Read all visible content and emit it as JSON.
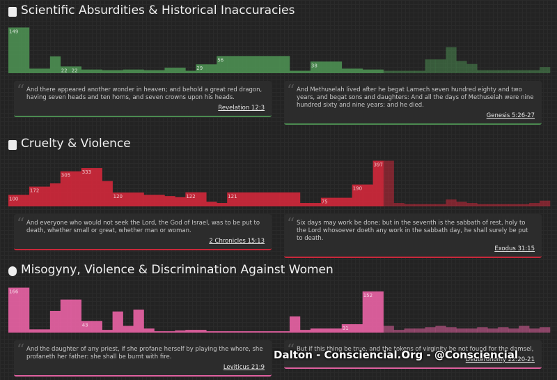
{
  "sections": [
    {
      "title": "Scientific Absurdities & Historical Inaccuracies",
      "color": "#4b8a50",
      "ylim": [
        0,
        150
      ],
      "values": [
        149,
        149,
        15,
        15,
        55,
        22,
        22,
        12,
        12,
        10,
        10,
        12,
        12,
        10,
        10,
        18,
        18,
        8,
        29,
        29,
        56,
        56,
        56,
        56,
        56,
        56,
        56,
        8,
        8,
        38,
        38,
        38,
        15,
        15,
        12,
        12,
        8,
        8,
        8,
        8,
        45,
        45,
        85,
        40,
        30,
        10,
        10,
        10,
        10,
        10,
        10,
        20
      ],
      "value_labels": [
        "149",
        null,
        null,
        null,
        null,
        "22",
        "22",
        null,
        null,
        null,
        null,
        null,
        null,
        null,
        null,
        null,
        null,
        null,
        "29",
        null,
        "56",
        null,
        null,
        null,
        null,
        null,
        null,
        null,
        null,
        "38",
        null,
        null,
        null,
        null,
        null,
        null,
        null,
        null,
        null,
        null,
        null,
        null,
        null,
        null,
        null,
        null,
        null,
        null,
        null,
        null,
        null,
        null
      ],
      "quotes": [
        {
          "text": "And there appeared another wonder in heaven; and behold a great red dragon, having seven heads and ten horns, and seven crowns upon his heads.",
          "ref": "Revelation 12:3"
        },
        {
          "text": "And Methuselah lived after he begat Lamech seven hundred eighty and two years, and begat sons and daughters: And all the days of Methuselah were nine hundred sixty and nine years: and he died.",
          "ref": "Genesis 5:26-27"
        }
      ]
    },
    {
      "title": "Cruelty & Violence",
      "color": "#c9283a",
      "ylim": [
        0,
        400
      ],
      "values": [
        100,
        100,
        172,
        172,
        200,
        305,
        305,
        333,
        333,
        220,
        120,
        120,
        120,
        100,
        100,
        90,
        80,
        122,
        122,
        40,
        30,
        121,
        121,
        121,
        121,
        121,
        121,
        121,
        30,
        30,
        75,
        75,
        75,
        190,
        190,
        397,
        397,
        30,
        20,
        20,
        20,
        20,
        60,
        40,
        30,
        20,
        20,
        20,
        20,
        20,
        30,
        50
      ],
      "value_labels": [
        "100",
        null,
        "172",
        null,
        null,
        "305",
        null,
        "333",
        null,
        null,
        "120",
        null,
        null,
        null,
        null,
        null,
        null,
        "122",
        null,
        null,
        null,
        "121",
        null,
        null,
        null,
        null,
        null,
        null,
        null,
        null,
        "75",
        null,
        null,
        "190",
        null,
        "397",
        null,
        null,
        null,
        null,
        null,
        null,
        null,
        null,
        null,
        null,
        null,
        null,
        null,
        null,
        null,
        null
      ],
      "quotes": [
        {
          "text": "And everyone who would not seek the Lord, the God of Israel, was to be put to death, whether small or great, whether man or woman.",
          "ref": "2 Chronicles 15:13"
        },
        {
          "text": "Six days may work be done; but in the seventh is the sabbath of rest, holy to the Lord whosoever doeth any work in the sabbath day, he shall surely be put to death.",
          "ref": "Exodus 31:15"
        }
      ]
    },
    {
      "title": "Misogyny, Violence & Discrimination Against Women",
      "color": "#e0609f",
      "ylim": [
        0,
        170
      ],
      "values": [
        166,
        166,
        12,
        12,
        80,
        122,
        122,
        43,
        43,
        10,
        78,
        25,
        85,
        15,
        5,
        5,
        8,
        10,
        10,
        5,
        5,
        5,
        5,
        5,
        5,
        5,
        5,
        60,
        10,
        15,
        15,
        15,
        31,
        31,
        152,
        152,
        25,
        10,
        15,
        15,
        20,
        25,
        20,
        15,
        15,
        20,
        15,
        20,
        15,
        25,
        15,
        20
      ],
      "value_labels": [
        "166",
        null,
        null,
        null,
        null,
        null,
        null,
        "43",
        null,
        null,
        null,
        null,
        null,
        null,
        null,
        null,
        null,
        null,
        null,
        null,
        null,
        null,
        null,
        null,
        null,
        null,
        null,
        null,
        null,
        null,
        null,
        null,
        "31",
        null,
        "152",
        null,
        null,
        null,
        null,
        null,
        null,
        null,
        null,
        null,
        null,
        null,
        null,
        null,
        null,
        null,
        null,
        null
      ],
      "quotes": [
        {
          "text": "And the daughter of any priest, if she profane herself by playing the whore, she profaneth her father: she shall be burnt with fire.",
          "ref": "Leviticus 21:9"
        },
        {
          "text": "But if this thing be true, and the tokens of virginity be not found for the damsel,",
          "ref": "Deuteronomy 22:20-21"
        }
      ]
    }
  ],
  "watermark": "Dalton - Consciencial.Org - @Consciencial"
}
